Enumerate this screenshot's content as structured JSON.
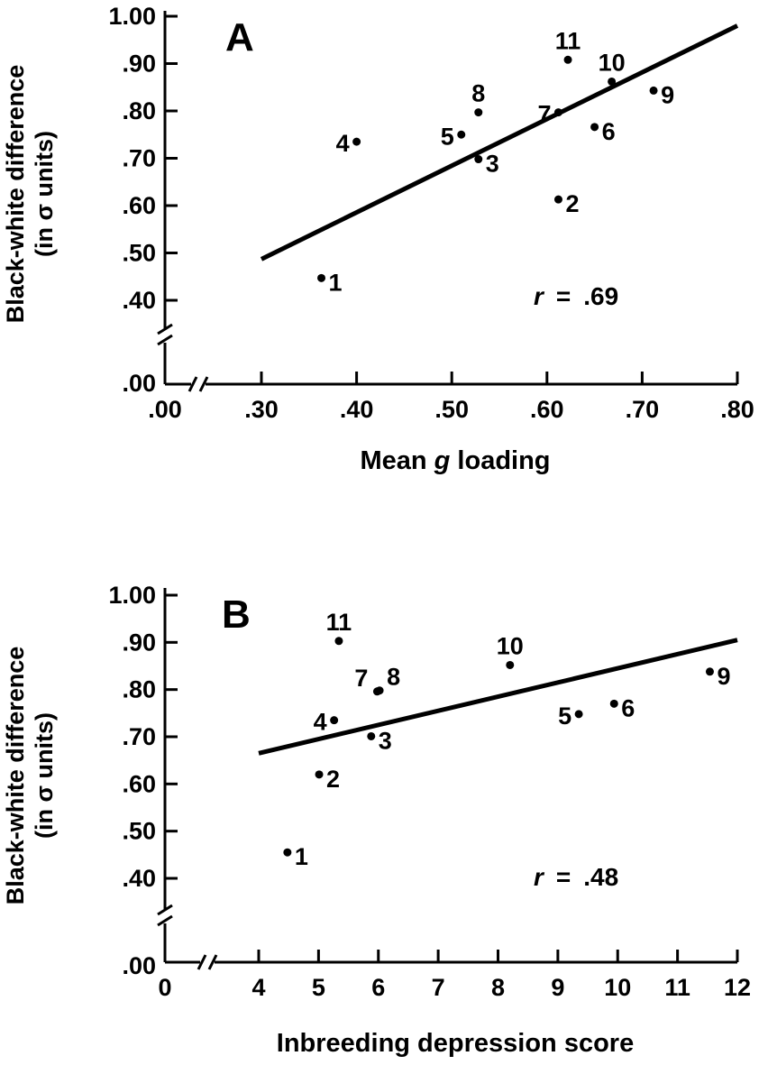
{
  "chart_data": [
    {
      "type": "scatter",
      "panel_label": "A",
      "xlabel_prefix": "Mean ",
      "xlabel_italic": "g",
      "xlabel_suffix": " loading",
      "ylabel_line1": "Black-white difference",
      "ylabel_line2": "(in σ units)",
      "xlim": [
        0.3,
        0.8
      ],
      "ylim": [
        0.4,
        1.0
      ],
      "x_origin_label": ".00",
      "y_origin_label": ".00",
      "xticks": [
        {
          "value": 0.3,
          "label": ".30"
        },
        {
          "value": 0.4,
          "label": ".40"
        },
        {
          "value": 0.5,
          "label": ".50"
        },
        {
          "value": 0.6,
          "label": ".60"
        },
        {
          "value": 0.7,
          "label": ".70"
        },
        {
          "value": 0.8,
          "label": ".80"
        }
      ],
      "yticks": [
        {
          "value": 0.4,
          "label": ".40"
        },
        {
          "value": 0.5,
          "label": ".50"
        },
        {
          "value": 0.6,
          "label": ".60"
        },
        {
          "value": 0.7,
          "label": ".70"
        },
        {
          "value": 0.8,
          "label": ".80"
        },
        {
          "value": 0.9,
          "label": ".90"
        },
        {
          "value": 1.0,
          "label": "1.00"
        }
      ],
      "points": [
        {
          "label": "1",
          "x": 0.363,
          "y": 0.447,
          "side": "right"
        },
        {
          "label": "2",
          "x": 0.612,
          "y": 0.613,
          "side": "right"
        },
        {
          "label": "3",
          "x": 0.528,
          "y": 0.698,
          "side": "right"
        },
        {
          "label": "4",
          "x": 0.4,
          "y": 0.735,
          "side": "left"
        },
        {
          "label": "5",
          "x": 0.51,
          "y": 0.75,
          "side": "left"
        },
        {
          "label": "6",
          "x": 0.65,
          "y": 0.766,
          "side": "right"
        },
        {
          "label": "7",
          "x": 0.612,
          "y": 0.797,
          "side": "left"
        },
        {
          "label": "8",
          "x": 0.528,
          "y": 0.797,
          "side": "above"
        },
        {
          "label": "9",
          "x": 0.712,
          "y": 0.843,
          "side": "right"
        },
        {
          "label": "10",
          "x": 0.668,
          "y": 0.862,
          "side": "above"
        },
        {
          "label": "11",
          "x": 0.622,
          "y": 0.908,
          "side": "above"
        }
      ],
      "fit_line": {
        "x": [
          0.3,
          0.8
        ],
        "y": [
          0.487,
          0.98
        ]
      },
      "r_label": "r",
      "r_equals": "=",
      "r_value": ".69"
    },
    {
      "type": "scatter",
      "panel_label": "B",
      "xlabel": "Inbreeding depression score",
      "ylabel_line1": "Black-white difference",
      "ylabel_line2": "(in σ units)",
      "xlim": [
        4,
        12
      ],
      "ylim": [
        0.4,
        1.0
      ],
      "x_origin_label": "0",
      "y_origin_label": ".00",
      "xticks": [
        {
          "value": 4,
          "label": "4"
        },
        {
          "value": 5,
          "label": "5"
        },
        {
          "value": 6,
          "label": "6"
        },
        {
          "value": 7,
          "label": "7"
        },
        {
          "value": 8,
          "label": "8"
        },
        {
          "value": 9,
          "label": "9"
        },
        {
          "value": 10,
          "label": "10"
        },
        {
          "value": 11,
          "label": "11"
        },
        {
          "value": 12,
          "label": "12"
        }
      ],
      "yticks": [
        {
          "value": 0.4,
          "label": ".40"
        },
        {
          "value": 0.5,
          "label": ".50"
        },
        {
          "value": 0.6,
          "label": ".60"
        },
        {
          "value": 0.7,
          "label": ".70"
        },
        {
          "value": 0.8,
          "label": ".80"
        },
        {
          "value": 0.9,
          "label": ".90"
        },
        {
          "value": 1.0,
          "label": "1.00"
        }
      ],
      "points": [
        {
          "label": "1",
          "x": 4.48,
          "y": 0.455,
          "side": "right"
        },
        {
          "label": "2",
          "x": 5.01,
          "y": 0.62,
          "side": "right"
        },
        {
          "label": "3",
          "x": 5.88,
          "y": 0.701,
          "side": "right"
        },
        {
          "label": "4",
          "x": 5.26,
          "y": 0.735,
          "side": "left"
        },
        {
          "label": "5",
          "x": 9.35,
          "y": 0.748,
          "side": "left"
        },
        {
          "label": "6",
          "x": 9.94,
          "y": 0.77,
          "side": "right"
        },
        {
          "label": "7",
          "x": 5.98,
          "y": 0.796,
          "side": "left-above"
        },
        {
          "label": "8",
          "x": 6.02,
          "y": 0.798,
          "side": "right-above"
        },
        {
          "label": "9",
          "x": 11.54,
          "y": 0.838,
          "side": "right"
        },
        {
          "label": "10",
          "x": 8.2,
          "y": 0.852,
          "side": "above"
        },
        {
          "label": "11",
          "x": 5.34,
          "y": 0.903,
          "side": "above"
        }
      ],
      "fit_line": {
        "x": [
          4,
          12
        ],
        "y": [
          0.665,
          0.905
        ]
      },
      "r_label": "r",
      "r_equals": "=",
      "r_value": ".48"
    }
  ]
}
